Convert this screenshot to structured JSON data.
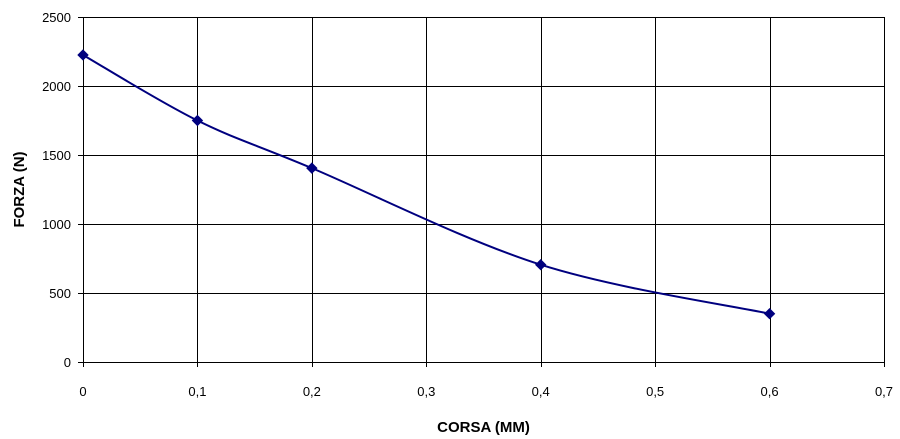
{
  "chart_data": {
    "type": "line",
    "title": "",
    "xlabel": "CORSA (MM)",
    "ylabel": "FORZA (N)",
    "xlim": [
      0,
      0.7
    ],
    "ylim": [
      0,
      2500
    ],
    "x_ticks": [
      0,
      0.1,
      0.2,
      0.3,
      0.4,
      0.5,
      0.6,
      0.7
    ],
    "x_tick_labels": [
      "0",
      "0,1",
      "0,2",
      "0,3",
      "0,4",
      "0,5",
      "0,6",
      "0,7"
    ],
    "y_ticks": [
      0,
      500,
      1000,
      1500,
      2000,
      2500
    ],
    "y_tick_labels": [
      "0",
      "500",
      "1000",
      "1500",
      "2000",
      "2500"
    ],
    "grid": true,
    "legend": "none",
    "line_color": "#00007f",
    "marker": "diamond",
    "smooth": true,
    "series": [
      {
        "x": [
          0,
          0.1,
          0.2,
          0.4,
          0.6
        ],
        "y": [
          2225,
          1750,
          1405,
          705,
          350
        ]
      }
    ]
  }
}
